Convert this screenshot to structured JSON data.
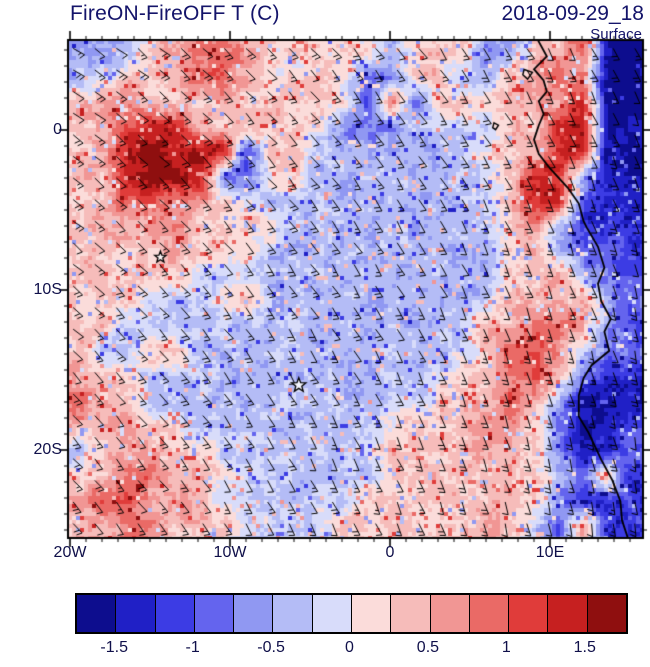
{
  "header": {
    "title": "FireON-FireOFF T (C)",
    "datetime": "2018-09-29_18",
    "level": "Surface"
  },
  "style": {
    "text_color": "#14146a",
    "axis_text_color": "#10104a",
    "frame_color": "#000000",
    "background": "#ffffff"
  },
  "chart_data": {
    "type": "heatmap",
    "overlays": [
      "wind_barbs",
      "coastline",
      "station_markers"
    ],
    "title": "FireON-FireOFF T (C)",
    "datetime": "2018-09-29_18",
    "level": "Surface",
    "variable": "Surface temperature difference, FireON minus FireOFF (deg C)",
    "lon_range": [
      -20.1,
      15.8
    ],
    "lat_range": [
      -25.5,
      5.6
    ],
    "x_ticks": [
      {
        "label": "20W",
        "lon": -20
      },
      {
        "label": "10W",
        "lon": -10
      },
      {
        "label": "0",
        "lon": 0
      },
      {
        "label": "10E",
        "lon": 10
      }
    ],
    "y_ticks": [
      {
        "label": "0",
        "lat": 0
      },
      {
        "label": "10S",
        "lat": -10
      },
      {
        "label": "20S",
        "lat": -20
      }
    ],
    "colorbar": {
      "orientation": "horizontal",
      "ticks": [
        "-1.5",
        "-1",
        "-0.5",
        "0",
        "0.5",
        "1",
        "1.5"
      ],
      "tick_values": [
        -1.5,
        -1,
        -0.5,
        0,
        0.5,
        1,
        1.5
      ],
      "min": -1.75,
      "max": 1.75,
      "step": 0.25,
      "colors": [
        "#0d0d8e",
        "#2020c6",
        "#3c3ce4",
        "#6464ee",
        "#9098f2",
        "#b4bcf6",
        "#d8dcfa",
        "#fbdcda",
        "#f6bcba",
        "#f19694",
        "#ea6a66",
        "#e03c3a",
        "#c62020",
        "#8f0f0f"
      ]
    },
    "grid": {
      "nrows": 20,
      "ncols": 24,
      "values": [
        [
          -0.5,
          -0.6,
          -0.3,
          0.3,
          0.4,
          0.8,
          0.9,
          0.5,
          0.2,
          0.2,
          0.2,
          0.2,
          0.2,
          -0.5,
          0.2,
          0.3,
          0.2,
          -0.7,
          -0.6,
          0.4,
          0.4,
          0.8,
          -1.6,
          -1.7
        ],
        [
          -0.4,
          -0.3,
          0.3,
          0.3,
          0.4,
          1.0,
          1.0,
          0.4,
          0.2,
          0.2,
          0.3,
          0.2,
          -0.9,
          -0.9,
          0.3,
          0.3,
          -0.5,
          -0.5,
          0.5,
          0.5,
          1.0,
          0.6,
          -1.7,
          -1.7
        ],
        [
          0.3,
          0.7,
          0.7,
          0.3,
          0.3,
          0.3,
          0.4,
          0.3,
          0.3,
          0.3,
          0.2,
          0.2,
          -1.0,
          1.0,
          -0.8,
          0.3,
          0.3,
          0.2,
          0.3,
          0.5,
          0.6,
          1.4,
          -1.7,
          -1.7
        ],
        [
          0.4,
          0.4,
          1.2,
          1.3,
          1.2,
          0.4,
          0.4,
          0.4,
          0.3,
          0.2,
          0.2,
          -0.8,
          -0.8,
          -0.8,
          -0.3,
          -0.3,
          -0.3,
          -0.3,
          0.3,
          0.3,
          1.5,
          1.5,
          -1.5,
          -1.5
        ],
        [
          0.3,
          0.5,
          1.5,
          1.6,
          1.5,
          1.5,
          1.4,
          -1.2,
          0.3,
          0.3,
          -0.4,
          -0.4,
          -0.4,
          -0.4,
          -0.4,
          -0.4,
          -0.4,
          0.2,
          0.2,
          0.4,
          1.4,
          1.4,
          -1.6,
          -1.6
        ],
        [
          0.4,
          0.4,
          1.6,
          1.7,
          1.6,
          1.5,
          -1.0,
          -1.0,
          0.2,
          0.2,
          -0.4,
          -0.4,
          -0.4,
          -0.4,
          -0.4,
          -0.4,
          -0.4,
          -0.2,
          0.3,
          1.2,
          1.2,
          -0.5,
          -1.5,
          -1.5
        ],
        [
          0.3,
          0.3,
          1.0,
          1.0,
          0.7,
          0.7,
          0.2,
          0.2,
          -0.4,
          -0.4,
          -0.4,
          -0.4,
          -0.4,
          -0.4,
          -0.4,
          -0.4,
          -0.4,
          -0.2,
          0.4,
          1.3,
          1.3,
          -1.0,
          -1.4,
          -1.4
        ],
        [
          0.4,
          0.4,
          0.4,
          0.6,
          0.6,
          0.2,
          0.2,
          0.2,
          0.2,
          -0.4,
          -0.4,
          -0.4,
          -0.4,
          -0.4,
          -0.4,
          -0.4,
          -0.4,
          -0.3,
          0.3,
          0.8,
          -0.3,
          -1.2,
          -1.2,
          -1.2
        ],
        [
          0.3,
          0.3,
          0.3,
          0.3,
          0.5,
          0.2,
          0.2,
          0.2,
          -0.4,
          -0.4,
          -0.4,
          -0.4,
          -0.4,
          -0.4,
          -0.4,
          -0.4,
          -0.4,
          -0.4,
          0.2,
          0.5,
          -0.5,
          -0.9,
          -0.9,
          -1.2
        ],
        [
          0.3,
          0.3,
          0.3,
          0.3,
          0.3,
          -0.2,
          -0.2,
          -0.2,
          -0.4,
          -0.4,
          -0.4,
          -0.4,
          -0.4,
          -0.4,
          -0.4,
          -0.4,
          -0.4,
          -0.4,
          0.3,
          0.3,
          0.5,
          -0.3,
          -0.8,
          -1.0
        ],
        [
          0.3,
          0.3,
          0.3,
          -0.3,
          -0.3,
          -0.3,
          0.2,
          0.2,
          -0.4,
          -0.4,
          -0.4,
          -0.4,
          -0.4,
          -0.4,
          -0.4,
          -0.4,
          -0.4,
          -0.2,
          0.4,
          0.4,
          0.4,
          0.6,
          -0.5,
          -0.9
        ],
        [
          0.3,
          0.3,
          -0.3,
          -0.3,
          -0.3,
          -0.3,
          -0.3,
          -0.3,
          -0.4,
          -0.4,
          -0.4,
          -0.4,
          -0.4,
          -0.4,
          -0.4,
          -0.4,
          -0.2,
          0.4,
          0.4,
          0.9,
          0.9,
          0.5,
          -0.6,
          -1.0
        ],
        [
          0.3,
          -0.3,
          -0.3,
          0.3,
          0.3,
          -0.35,
          -0.35,
          -0.35,
          -0.35,
          -0.35,
          -0.4,
          -0.4,
          -0.4,
          -0.4,
          -0.4,
          -0.4,
          -0.2,
          0.3,
          1.0,
          1.0,
          0.7,
          -0.2,
          -0.8,
          -0.8
        ],
        [
          0.6,
          0.3,
          0.3,
          -0.3,
          -0.3,
          -0.3,
          -0.3,
          -0.3,
          -0.3,
          -0.4,
          -0.4,
          -0.4,
          -0.4,
          -0.4,
          -0.4,
          -0.2,
          0.3,
          0.3,
          0.8,
          1.0,
          0.4,
          -0.7,
          -1.3,
          -1.3
        ],
        [
          0.8,
          0.3,
          0.3,
          -0.35,
          -0.35,
          -0.35,
          -0.35,
          -0.35,
          -0.35,
          -0.35,
          -0.35,
          -0.35,
          -0.35,
          -0.3,
          -0.3,
          0.3,
          0.3,
          0.5,
          0.9,
          0.4,
          -0.5,
          -1.5,
          -1.5,
          -1.5
        ],
        [
          0.4,
          0.4,
          0.7,
          0.2,
          0.2,
          -0.35,
          -0.35,
          -0.35,
          -0.35,
          -0.35,
          -0.35,
          -0.35,
          -0.35,
          0.2,
          0.2,
          0.2,
          0.4,
          0.6,
          0.6,
          0.3,
          -0.8,
          -1.5,
          -1.5,
          -1.2
        ],
        [
          -0.4,
          0.4,
          0.4,
          0.6,
          0.2,
          0.2,
          -0.3,
          -0.3,
          -0.3,
          -0.3,
          -0.3,
          -0.3,
          -0.3,
          0.3,
          0.3,
          0.3,
          0.3,
          0.5,
          0.3,
          0.3,
          -0.6,
          -1.4,
          -1.4,
          -0.8
        ],
        [
          0.3,
          0.3,
          0.9,
          0.9,
          0.3,
          0.3,
          0.3,
          -0.3,
          -0.3,
          -0.3,
          -0.3,
          -0.3,
          -0.3,
          0.3,
          0.3,
          0.3,
          0.3,
          0.3,
          0.5,
          0.3,
          -0.4,
          -1.0,
          0.6,
          -1.3
        ],
        [
          0.4,
          1.1,
          1.1,
          0.4,
          0.6,
          0.6,
          -0.25,
          -0.25,
          -0.25,
          -0.25,
          -0.25,
          -0.25,
          0.3,
          0.3,
          0.3,
          0.3,
          0.3,
          0.4,
          0.4,
          0.2,
          -0.7,
          -1.3,
          -1.3,
          -1.0
        ],
        [
          0.4,
          0.4,
          0.8,
          0.8,
          0.3,
          0.3,
          0.3,
          -0.2,
          -0.2,
          -0.2,
          -0.2,
          0.3,
          0.3,
          0.3,
          0.3,
          0.3,
          0.3,
          0.5,
          0.3,
          -0.3,
          -1.0,
          0.5,
          -1.2,
          -1.2
        ]
      ]
    },
    "markers": [
      {
        "lon": -14.35,
        "lat": -7.95,
        "size": 6
      },
      {
        "lon": -5.7,
        "lat": -15.95,
        "size": 7.5
      }
    ],
    "coastline": [
      [
        9.2,
        5.7
      ],
      [
        9.8,
        4.6
      ],
      [
        9.0,
        3.8
      ],
      [
        9.6,
        3.1
      ],
      [
        9.8,
        2.4
      ],
      [
        9.3,
        1.8
      ],
      [
        9.6,
        1.0
      ],
      [
        9.3,
        0.3
      ],
      [
        9.0,
        -0.6
      ],
      [
        9.3,
        -1.5
      ],
      [
        10.0,
        -2.4
      ],
      [
        11.1,
        -3.6
      ],
      [
        11.8,
        -4.6
      ],
      [
        12.1,
        -5.7
      ],
      [
        12.3,
        -6.1
      ],
      [
        13.0,
        -7.3
      ],
      [
        13.4,
        -8.6
      ],
      [
        13.0,
        -9.6
      ],
      [
        13.2,
        -10.7
      ],
      [
        13.8,
        -11.8
      ],
      [
        13.4,
        -12.6
      ],
      [
        13.7,
        -13.8
      ],
      [
        12.6,
        -14.7
      ],
      [
        12.1,
        -15.5
      ],
      [
        11.8,
        -16.6
      ],
      [
        11.8,
        -17.9
      ],
      [
        12.4,
        -18.9
      ],
      [
        13.2,
        -20.6
      ],
      [
        13.9,
        -21.9
      ],
      [
        14.4,
        -23.2
      ],
      [
        14.5,
        -24.4
      ],
      [
        14.9,
        -25.6
      ]
    ],
    "islands": [
      [
        [
          6.5,
          0.45
        ],
        [
          6.78,
          0.3
        ],
        [
          6.6,
          0.02
        ],
        [
          6.42,
          0.15
        ]
      ],
      [
        [
          8.38,
          3.78
        ],
        [
          8.9,
          3.6
        ],
        [
          8.6,
          3.18
        ],
        [
          8.3,
          3.45
        ]
      ]
    ],
    "wind_barbs": {
      "pattern": "southeasterly trade winds",
      "speed_range_kt": [
        5,
        10
      ],
      "spacing_deg": 1.35
    },
    "render_seed": 7
  }
}
